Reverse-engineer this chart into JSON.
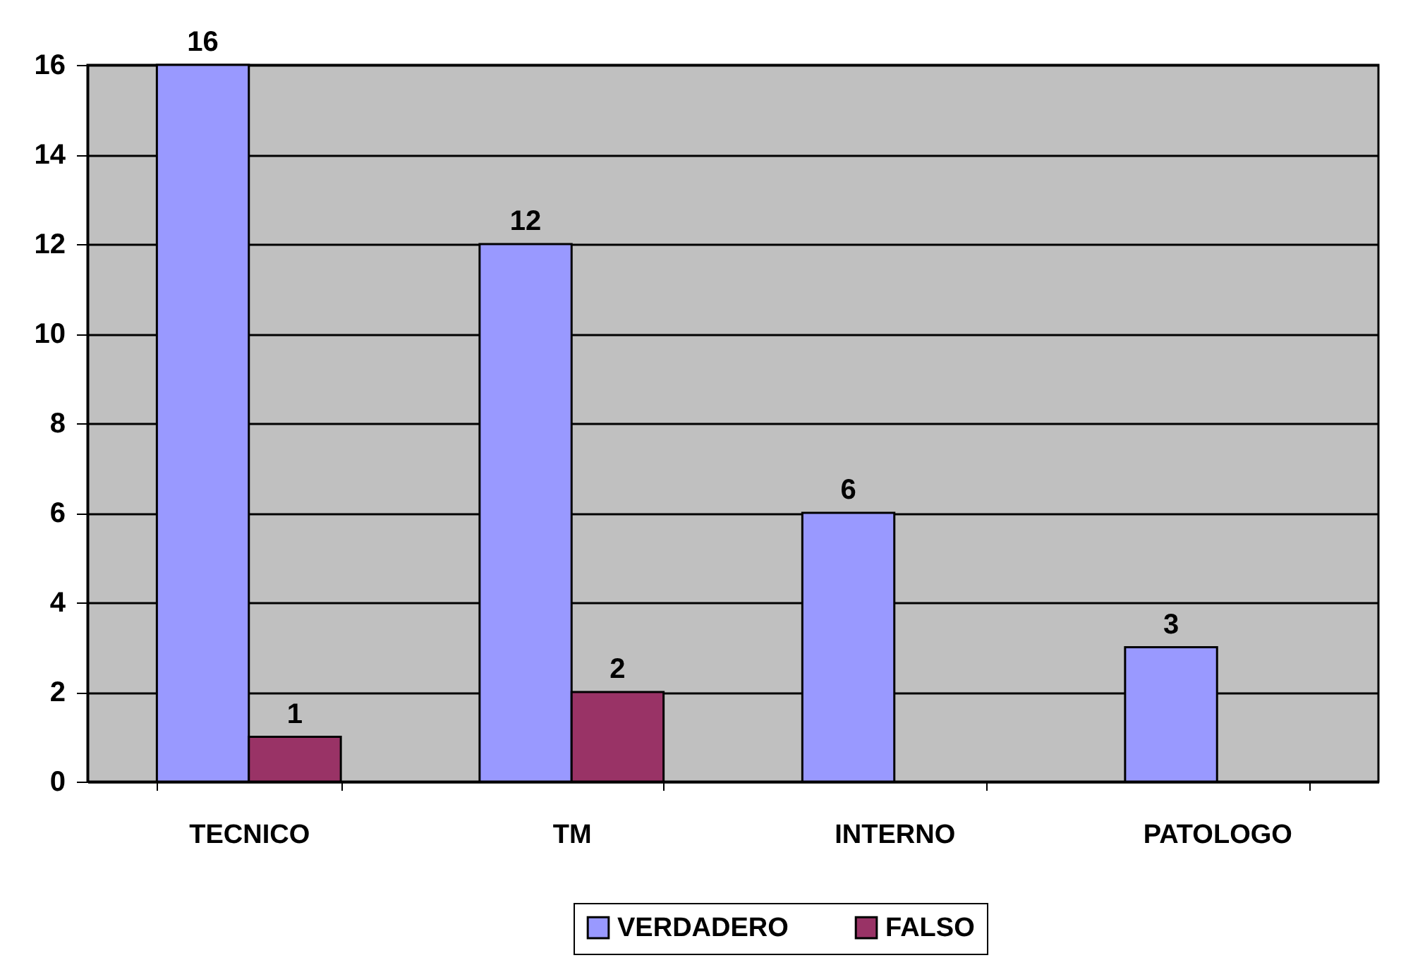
{
  "chart_data": {
    "type": "bar",
    "categories": [
      "TECNICO",
      "TM",
      "INTERNO",
      "PATOLOGO"
    ],
    "series": [
      {
        "name": "VERDADERO",
        "color": "#9999ff",
        "values": [
          16,
          12,
          6,
          3
        ]
      },
      {
        "name": "FALSO",
        "color": "#993366",
        "values": [
          1,
          2,
          null,
          null
        ]
      }
    ],
    "ylim": [
      0,
      16
    ],
    "yticks": [
      0,
      2,
      4,
      6,
      8,
      10,
      12,
      14,
      16
    ],
    "grid": "y",
    "legend": "bottom",
    "data_labels": true
  }
}
